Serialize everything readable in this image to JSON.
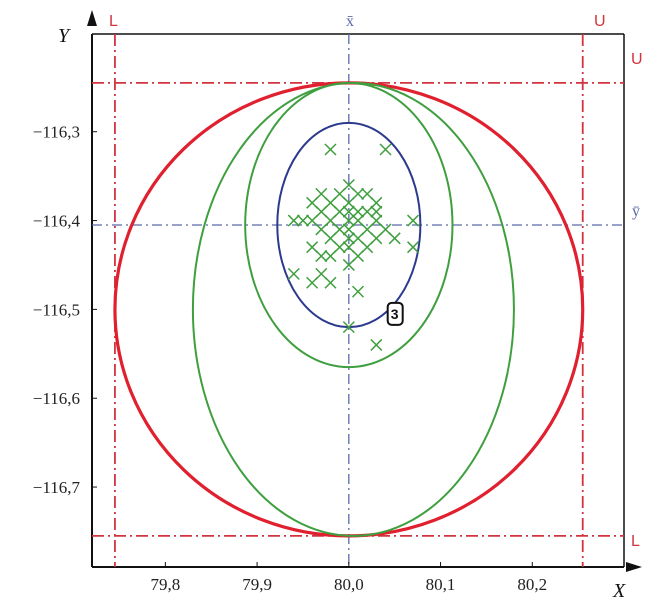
{
  "chart_data": {
    "type": "scatter",
    "xlabel": "X",
    "ylabel": "Y",
    "xlim": [
      79.72,
      80.3
    ],
    "ylim": [
      -116.79,
      -116.19
    ],
    "xticks": [
      {
        "value": 79.8,
        "label": "79,8"
      },
      {
        "value": 79.9,
        "label": "79,9"
      },
      {
        "value": 80.0,
        "label": "80,0"
      },
      {
        "value": 80.1,
        "label": "80,1"
      },
      {
        "value": 80.2,
        "label": "80,2"
      }
    ],
    "yticks": [
      {
        "value": -116.3,
        "label": "−116,3"
      },
      {
        "value": -116.4,
        "label": "−116,4"
      },
      {
        "value": -116.5,
        "label": "−116,5"
      },
      {
        "value": -116.6,
        "label": "−116,6"
      },
      {
        "value": -116.7,
        "label": "−116,7"
      }
    ],
    "grid": false,
    "mean": {
      "x": 80.0,
      "y": -116.405,
      "x_label": "x̄",
      "y_label": "ȳ"
    },
    "limits": {
      "x_lower": 79.745,
      "x_upper": 80.255,
      "y_lower": -116.755,
      "y_upper": -116.245,
      "lower_label": "L",
      "upper_label": "U"
    },
    "ellipses": [
      {
        "cx": 80.0,
        "cy": -116.5,
        "rx": 0.255,
        "ry": 0.255,
        "color": "#e0202e"
      },
      {
        "cx": 80.005,
        "cy": -116.5,
        "rx": 0.175,
        "ry": 0.255,
        "color": "#3f9f3f"
      },
      {
        "cx": 80.0,
        "cy": -116.405,
        "rx": 0.113,
        "ry": 0.16,
        "color": "#3f9f3f"
      },
      {
        "cx": 80.0,
        "cy": -116.405,
        "rx": 0.078,
        "ry": 0.115,
        "color": "#2c3a8e"
      }
    ],
    "annotation": {
      "text": "3",
      "x": 80.05,
      "y": -116.505
    },
    "points": [
      [
        79.98,
        -116.32
      ],
      [
        80.04,
        -116.32
      ],
      [
        79.97,
        -116.37
      ],
      [
        79.99,
        -116.37
      ],
      [
        80.0,
        -116.36
      ],
      [
        80.01,
        -116.37
      ],
      [
        80.02,
        -116.37
      ],
      [
        79.96,
        -116.38
      ],
      [
        79.98,
        -116.38
      ],
      [
        80.0,
        -116.38
      ],
      [
        80.03,
        -116.38
      ],
      [
        79.97,
        -116.39
      ],
      [
        79.99,
        -116.39
      ],
      [
        80.0,
        -116.39
      ],
      [
        80.01,
        -116.39
      ],
      [
        80.02,
        -116.39
      ],
      [
        80.03,
        -116.39
      ],
      [
        79.94,
        -116.4
      ],
      [
        79.96,
        -116.4
      ],
      [
        79.98,
        -116.4
      ],
      [
        80.0,
        -116.4
      ],
      [
        80.01,
        -116.4
      ],
      [
        80.03,
        -116.4
      ],
      [
        80.07,
        -116.4
      ],
      [
        79.95,
        -116.4
      ],
      [
        79.97,
        -116.41
      ],
      [
        79.99,
        -116.41
      ],
      [
        80.0,
        -116.41
      ],
      [
        80.02,
        -116.41
      ],
      [
        80.04,
        -116.41
      ],
      [
        79.98,
        -116.42
      ],
      [
        80.0,
        -116.42
      ],
      [
        80.01,
        -116.42
      ],
      [
        80.03,
        -116.42
      ],
      [
        80.05,
        -116.42
      ],
      [
        79.96,
        -116.43
      ],
      [
        79.99,
        -116.43
      ],
      [
        80.0,
        -116.43
      ],
      [
        80.02,
        -116.43
      ],
      [
        80.07,
        -116.43
      ],
      [
        79.97,
        -116.44
      ],
      [
        79.98,
        -116.44
      ],
      [
        80.01,
        -116.44
      ],
      [
        80.0,
        -116.45
      ],
      [
        79.94,
        -116.46
      ],
      [
        79.97,
        -116.46
      ],
      [
        79.96,
        -116.47
      ],
      [
        79.98,
        -116.47
      ],
      [
        80.01,
        -116.48
      ],
      [
        80.0,
        -116.52
      ],
      [
        80.03,
        -116.54
      ]
    ]
  }
}
